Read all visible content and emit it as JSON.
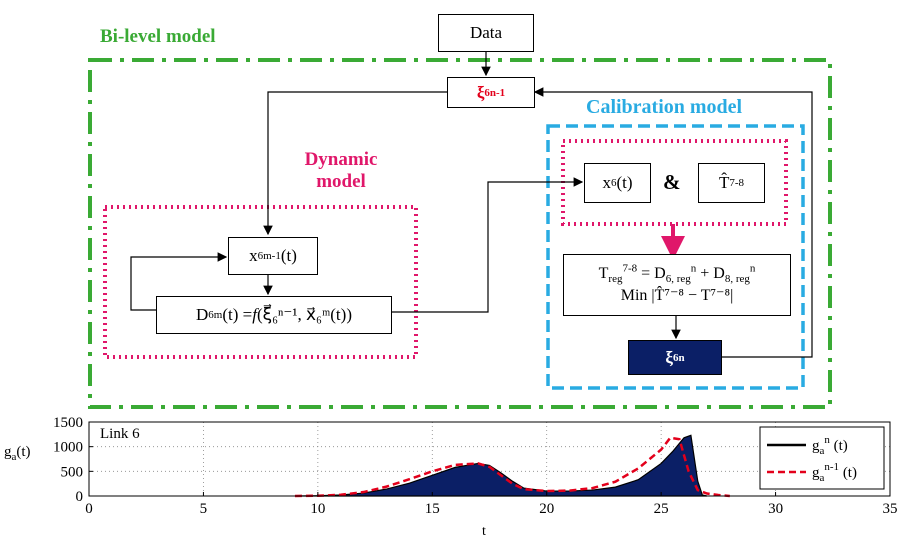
{
  "labels": {
    "bilevel": "Bi-level model",
    "calibration": "Calibration model",
    "dynamic_line1": "Dynamic",
    "dynamic_line2": "model"
  },
  "boxes": {
    "data": "Data",
    "xi_prev": {
      "base": "ξ",
      "sub": "6",
      "sup": "n-1"
    },
    "x_prev": {
      "base": "x",
      "sub": "6",
      "sup": "m-1",
      "tail": "(t)"
    },
    "dyn_eq": {
      "lhs": "D",
      "lhs_sub": "6",
      "lhs_sup": "m",
      "mid": "(t) = ",
      "f": "f",
      "args": "(ξ⃗₆ⁿ⁻¹, x⃗₆ᵐ(t))"
    },
    "x6": {
      "base": "x",
      "sub": "6",
      "tail": "(t)"
    },
    "amp": "&",
    "that": {
      "base": "T̂",
      "sup": "7-8"
    },
    "calib_eq_line1": "T_reg^7-8 = D_6,reg^n + D_8,reg^n",
    "calib_eq_line1_parts": {
      "t": "T",
      "t_sub": "reg",
      "t_sup": "7-8",
      "eq": " = D",
      "d6_sub": "6, reg",
      "d_sup": "n",
      "plus": " + D",
      "d8_sub": "8, reg"
    },
    "calib_eq_line2": "Min |T̂⁷⁻⁸ − T⁷⁻⁸|",
    "xi_new": {
      "base": "ξ",
      "sub": "6",
      "sup": "n"
    }
  },
  "colors": {
    "bilevel": "#3aaa35",
    "calibration": "#29abe2",
    "dynamic": "#e0176a",
    "navy": "#0b1f66",
    "red": "#e3001b"
  },
  "chart_data": {
    "type": "area",
    "annotation": "Link 6",
    "xlabel": "t",
    "ylabel": "g_a(t)",
    "xlim": [
      0,
      35
    ],
    "ylim": [
      0,
      1500
    ],
    "xticks": [
      0,
      5,
      10,
      15,
      20,
      25,
      30,
      35
    ],
    "yticks": [
      0,
      500,
      1000,
      1500
    ],
    "grid": true,
    "legend_position": "right",
    "series": [
      {
        "name": "g_a^n (t)",
        "style": "solid-filled",
        "x": [
          9.0,
          10,
          11,
          12,
          13,
          14,
          15,
          16,
          17,
          17.5,
          18,
          18.5,
          19,
          20,
          21,
          22,
          23,
          24,
          25,
          25.5,
          26,
          26.3,
          26.6,
          26.8,
          27.0
        ],
        "y": [
          0,
          5,
          20,
          60,
          140,
          260,
          420,
          580,
          660,
          620,
          470,
          300,
          160,
          100,
          100,
          120,
          180,
          330,
          660,
          900,
          1180,
          1230,
          300,
          20,
          0
        ]
      },
      {
        "name": "g_a^n-1 (t)",
        "style": "dashed",
        "x": [
          9.0,
          10,
          11,
          12,
          13,
          14,
          15,
          16,
          17,
          17.5,
          18,
          18.5,
          19,
          20,
          21,
          22,
          23,
          24,
          25,
          25.4,
          25.8,
          26.2,
          26.6,
          27.0,
          27.5,
          28.0
        ],
        "y": [
          0,
          5,
          25,
          80,
          190,
          340,
          500,
          630,
          660,
          590,
          420,
          250,
          140,
          100,
          110,
          160,
          290,
          560,
          940,
          1180,
          1150,
          500,
          120,
          50,
          20,
          0
        ]
      }
    ],
    "legend": {
      "n_base": "g",
      "n_sub": "a",
      "n_sup": "n",
      "n_tail": " (t)",
      "nm1_base": "g",
      "nm1_sub": "a",
      "nm1_sup": "n-1",
      "nm1_tail": " (t)"
    },
    "ylabel_parts": {
      "base": "g",
      "sub": "a",
      "tail": "(t)"
    }
  }
}
